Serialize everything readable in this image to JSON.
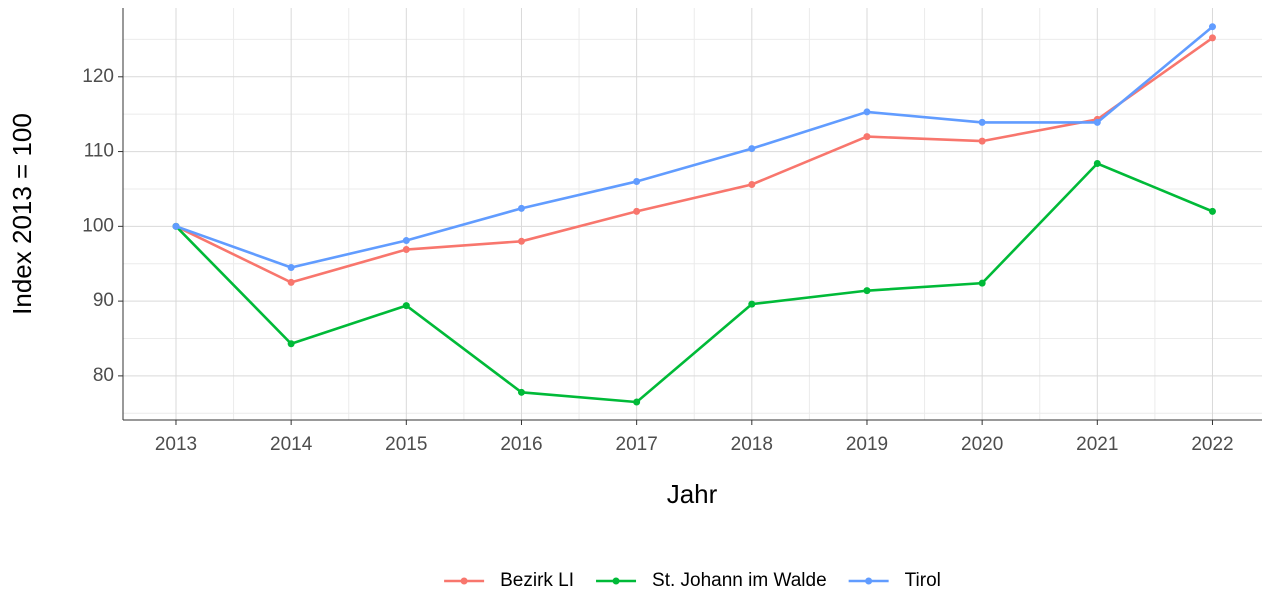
{
  "chart_data": {
    "type": "line",
    "x_label": "Jahr",
    "y_label": "Index  2013  = 100",
    "x": [
      2013,
      2014,
      2015,
      2016,
      2017,
      2018,
      2019,
      2020,
      2021,
      2022
    ],
    "series": [
      {
        "name": "Bezirk LI",
        "color": "#F8766D",
        "values": [
          100,
          92.5,
          96.9,
          98.0,
          102.0,
          105.6,
          112.0,
          111.4,
          114.3,
          125.2
        ]
      },
      {
        "name": "St. Johann im Walde",
        "color": "#00BA38",
        "values": [
          100,
          84.3,
          89.4,
          77.8,
          76.5,
          89.6,
          91.4,
          92.4,
          108.4,
          102.0
        ]
      },
      {
        "name": "Tirol",
        "color": "#619CFF",
        "values": [
          100,
          94.5,
          98.1,
          102.4,
          106.0,
          110.4,
          115.3,
          113.9,
          113.9,
          126.7
        ]
      }
    ],
    "xlim": [
      2012.54,
      2022.43
    ],
    "xticks": [
      2013,
      2014,
      2015,
      2016,
      2017,
      2018,
      2019,
      2020,
      2021,
      2022
    ],
    "ylim": [
      74.1,
      129.2
    ],
    "yticks": [
      80,
      90,
      100,
      110,
      120
    ],
    "grid": true,
    "legend": "bottom"
  }
}
